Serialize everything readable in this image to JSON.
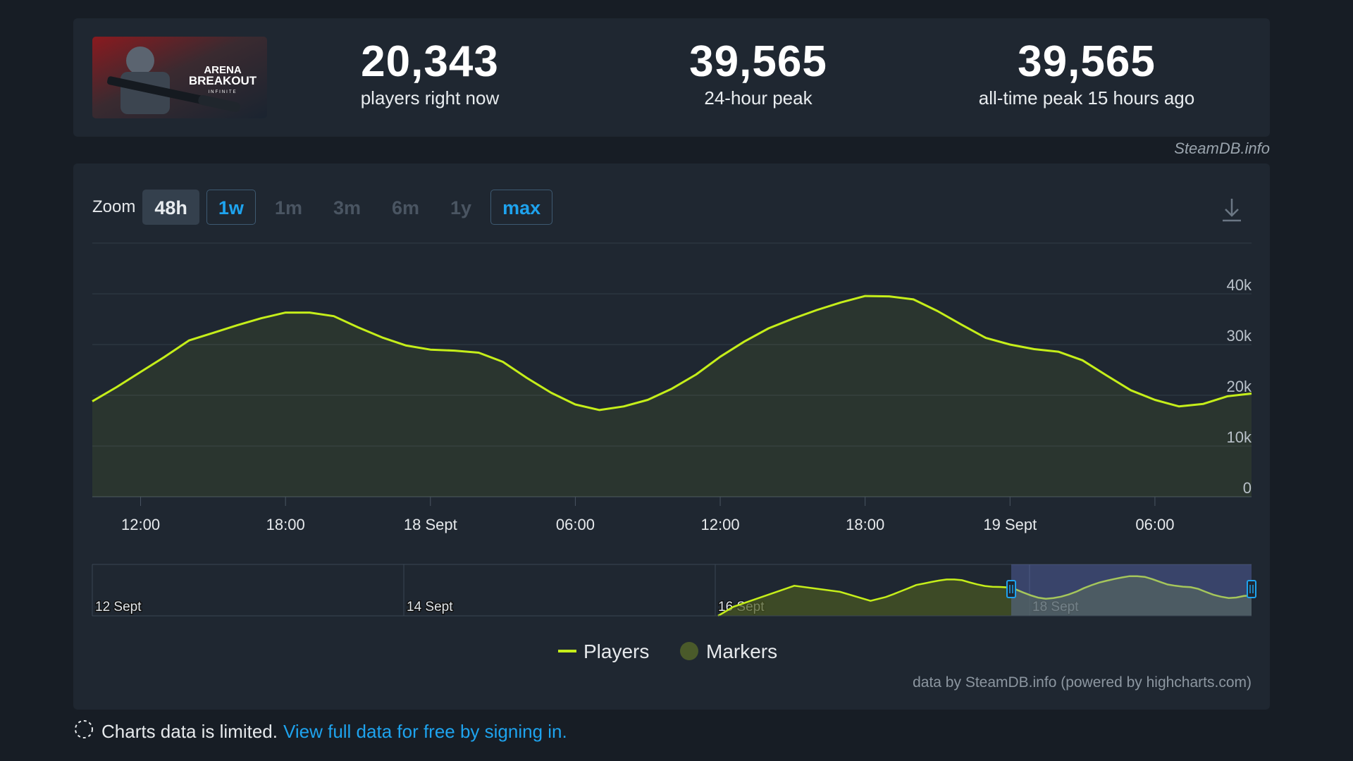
{
  "stats": [
    {
      "value": "20,343",
      "label": "players right now"
    },
    {
      "value": "39,565",
      "label": "24-hour peak"
    },
    {
      "value": "39,565",
      "label": "all-time peak 15 hours ago"
    }
  ],
  "banner": {
    "line1": "ARENA",
    "line2": "BREAKOUT",
    "line3": "INFINITE"
  },
  "credit": "SteamDB.info",
  "zoom": {
    "label": "Zoom",
    "buttons": [
      "48h",
      "1w",
      "1m",
      "3m",
      "6m",
      "1y",
      "max"
    ],
    "active": "48h"
  },
  "chart_data": {
    "type": "line",
    "series": [
      {
        "name": "Players",
        "color": "#c5ee1a",
        "x_hours": [
          0,
          1,
          2,
          3,
          4,
          5,
          6,
          7,
          8,
          9,
          10,
          11,
          12,
          13,
          14,
          15,
          16,
          17,
          18,
          19,
          20,
          21,
          22,
          23,
          24,
          25,
          26,
          27,
          28,
          29,
          30,
          31,
          32,
          33,
          34,
          35,
          36,
          37,
          38,
          39,
          40,
          41,
          42,
          43,
          44,
          45,
          46,
          47,
          48
        ],
        "values": [
          18800,
          21600,
          24600,
          27600,
          30800,
          32300,
          33800,
          35200,
          36300,
          36300,
          35600,
          33400,
          31400,
          29800,
          29000,
          28800,
          28400,
          26600,
          23400,
          20500,
          18200,
          17100,
          17800,
          19100,
          21300,
          24100,
          27600,
          30600,
          33200,
          35100,
          36800,
          38300,
          39565,
          39500,
          38900,
          36600,
          33900,
          31300,
          30000,
          29100,
          28600,
          26900,
          23900,
          21000,
          19100,
          17800,
          18300,
          19800,
          20343
        ]
      }
    ],
    "x_tick_labels": [
      "12:00",
      "18:00",
      "18 Sept",
      "06:00",
      "12:00",
      "18:00",
      "19 Sept",
      "06:00"
    ],
    "y_tick_labels": [
      "0",
      "10k",
      "20k",
      "30k",
      "40k"
    ],
    "ylim": [
      0,
      50000
    ],
    "grid": true,
    "navigator": {
      "date_labels": [
        "12 Sept",
        "14 Sept",
        "16 Sept",
        "18 Sept"
      ],
      "selected_range": "last 48h"
    },
    "legend": [
      {
        "name": "Players",
        "color": "#c5ee1a"
      },
      {
        "name": "Markers",
        "color": "#4a5a2a"
      }
    ],
    "legend_position": "bottom-center",
    "attribution": "data by SteamDB.info (powered by highcharts.com)"
  },
  "footer": {
    "text": "Charts data is limited.",
    "link": "View full data for free by signing in."
  },
  "colors": {
    "background": "#171d25",
    "panel": "#1f2731",
    "accent": "#1ea3ee",
    "line": "#c5ee1a"
  },
  "icons": {
    "download": "download-icon",
    "spinner": "loading-circle-icon"
  }
}
